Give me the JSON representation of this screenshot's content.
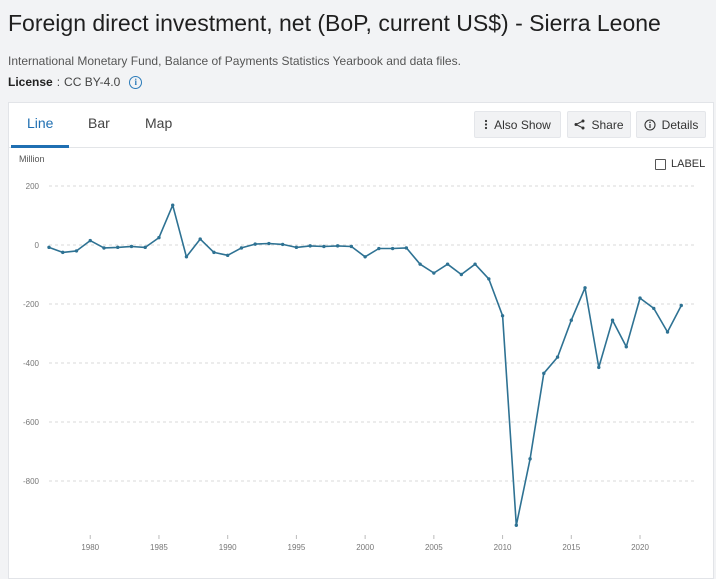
{
  "header": {
    "title": "Foreign direct investment, net (BoP, current US$) - Sierra Leone",
    "source": "International Monetary Fund, Balance of Payments Statistics Yearbook and data files.",
    "license_label": "License",
    "license_sep": ":",
    "license_value": "CC BY-4.0",
    "info_glyph": "i"
  },
  "tabs": [
    "Line",
    "Bar",
    "Map"
  ],
  "toolbar": {
    "also_show": "Also Show",
    "share": "Share",
    "details": "Details"
  },
  "chart_controls": {
    "unit": "Million",
    "label_toggle": "LABEL"
  },
  "colors": {
    "line": "#2e7293",
    "accent": "#1f6fb2",
    "grid": "#d9d9d9"
  },
  "chart_data": {
    "type": "line",
    "title": "Foreign direct investment, net (BoP, current US$) - Sierra Leone",
    "ylabel": "Million",
    "xlabel": "",
    "ylim": [
      -950,
      200
    ],
    "xlim": [
      1977,
      2024
    ],
    "y_ticks": [
      200,
      0,
      -200,
      -400,
      -600,
      -800
    ],
    "x_ticks": [
      1980,
      1985,
      1990,
      1995,
      2000,
      2005,
      2010,
      2015,
      2020
    ],
    "grid": true,
    "legend": "none",
    "series": [
      {
        "x": [
          1977,
          1978,
          1979,
          1980,
          1981,
          1982,
          1983,
          1984,
          1985,
          1986,
          1987,
          1988,
          1989,
          1990,
          1991,
          1992,
          1993,
          1994,
          1995,
          1996,
          1997,
          1998,
          1999,
          2000,
          2001,
          2002,
          2003,
          2004,
          2005,
          2006,
          2007,
          2008,
          2009,
          2010,
          2011,
          2012,
          2013,
          2014,
          2015,
          2016,
          2017,
          2018,
          2019,
          2020,
          2021,
          2022,
          2023
        ],
        "values": [
          -8,
          -25,
          -20,
          15,
          -10,
          -8,
          -5,
          -8,
          25,
          135,
          -40,
          20,
          -25,
          -35,
          -10,
          3,
          5,
          2,
          -8,
          -3,
          -5,
          -3,
          -5,
          -40,
          -12,
          -12,
          -10,
          -65,
          -95,
          -65,
          -100,
          -65,
          -115,
          -240,
          -950,
          -725,
          -435,
          -380,
          -255,
          -145,
          -415,
          -255,
          -345,
          -180,
          -215,
          -295,
          -205
        ]
      }
    ]
  }
}
